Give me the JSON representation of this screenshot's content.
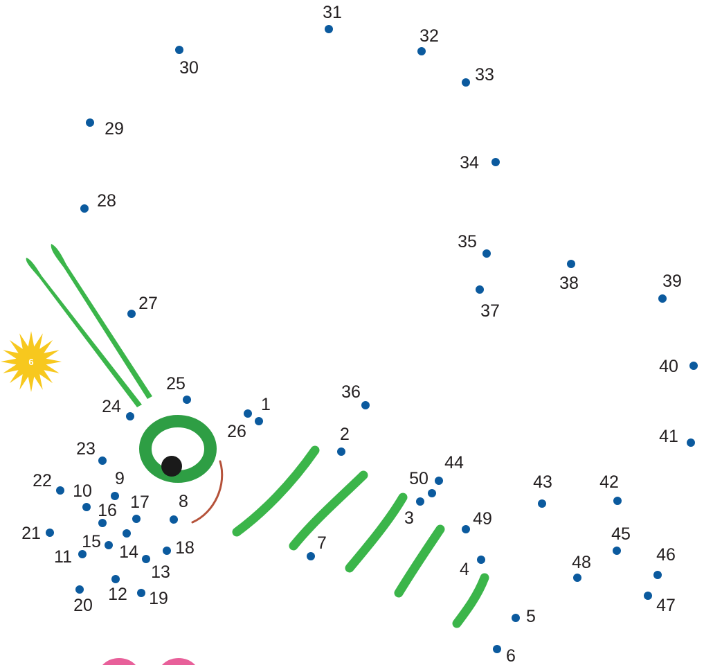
{
  "puzzle": {
    "badge_number": "6",
    "colors": {
      "dot": "#0b5a9e",
      "label": "#231f20",
      "grass": "#3bb54a",
      "eye": "#2e9e44",
      "pupil": "#1a1a1a",
      "mouth": "#b5523a",
      "badge": "#f7c81e",
      "pink": "#e8609a"
    },
    "icons": [
      "sun-badge-icon",
      "dragonfly-eye-icon",
      "antenna-icon",
      "grass-stroke-icon"
    ],
    "dots": [
      {
        "n": "1"
      },
      {
        "n": "2"
      },
      {
        "n": "3"
      },
      {
        "n": "4"
      },
      {
        "n": "5"
      },
      {
        "n": "6"
      },
      {
        "n": "7"
      },
      {
        "n": "8"
      },
      {
        "n": "9"
      },
      {
        "n": "10"
      },
      {
        "n": "11"
      },
      {
        "n": "12"
      },
      {
        "n": "13"
      },
      {
        "n": "14"
      },
      {
        "n": "15"
      },
      {
        "n": "16"
      },
      {
        "n": "17"
      },
      {
        "n": "18"
      },
      {
        "n": "19"
      },
      {
        "n": "20"
      },
      {
        "n": "21"
      },
      {
        "n": "22"
      },
      {
        "n": "23"
      },
      {
        "n": "24"
      },
      {
        "n": "25"
      },
      {
        "n": "26"
      },
      {
        "n": "27"
      },
      {
        "n": "28"
      },
      {
        "n": "29"
      },
      {
        "n": "30"
      },
      {
        "n": "31"
      },
      {
        "n": "32"
      },
      {
        "n": "33"
      },
      {
        "n": "34"
      },
      {
        "n": "35"
      },
      {
        "n": "36"
      },
      {
        "n": "37"
      },
      {
        "n": "38"
      },
      {
        "n": "39"
      },
      {
        "n": "40"
      },
      {
        "n": "41"
      },
      {
        "n": "42"
      },
      {
        "n": "43"
      },
      {
        "n": "44"
      },
      {
        "n": "45"
      },
      {
        "n": "46"
      },
      {
        "n": "47"
      },
      {
        "n": "48"
      },
      {
        "n": "49"
      },
      {
        "n": "50"
      }
    ]
  }
}
